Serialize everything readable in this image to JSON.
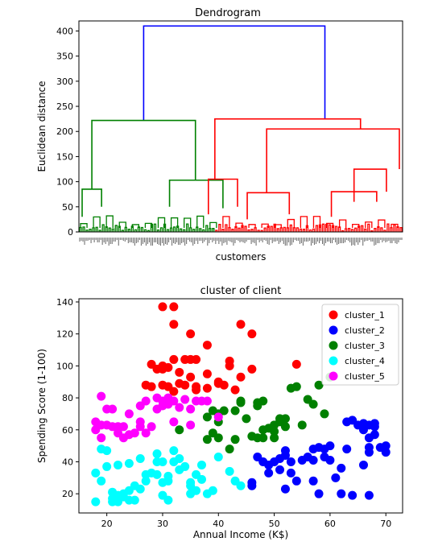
{
  "chart_data": [
    {
      "type": "dendrogram",
      "title": "Dendrogram",
      "xlabel": "customers",
      "ylabel": "Euclidean distance",
      "ylim": [
        0,
        420
      ],
      "yticks": [
        0,
        50,
        100,
        150,
        200,
        250,
        300,
        350,
        400
      ],
      "colors": {
        "root": "#0000ff",
        "left": "#008000",
        "right": "#ff0000"
      },
      "links": [
        {
          "color": "#0000ff",
          "x": [
            0.2,
            0.2,
            0.76,
            0.76
          ],
          "y": [
            222,
            410,
            410,
            225
          ]
        },
        {
          "color": "#008000",
          "x": [
            0.04,
            0.04,
            0.36,
            0.36
          ],
          "y": [
            85,
            222,
            222,
            103
          ]
        },
        {
          "color": "#008000",
          "x": [
            0.01,
            0.01,
            0.07,
            0.07
          ],
          "y": [
            30,
            85,
            85,
            50
          ]
        },
        {
          "color": "#008000",
          "x": [
            0.28,
            0.28,
            0.445,
            0.445
          ],
          "y": [
            50,
            103,
            103,
            47
          ]
        },
        {
          "color": "#ff0000",
          "x": [
            0.42,
            0.42,
            0.87,
            0.87
          ],
          "y": [
            105,
            225,
            225,
            205
          ]
        },
        {
          "color": "#ff0000",
          "x": [
            0.4,
            0.4,
            0.49,
            0.49
          ],
          "y": [
            35,
            105,
            105,
            50
          ]
        },
        {
          "color": "#ff0000",
          "x": [
            0.58,
            0.58,
            0.99,
            0.99
          ],
          "y": [
            78,
            205,
            205,
            125
          ]
        },
        {
          "color": "#ff0000",
          "x": [
            0.52,
            0.52,
            0.65,
            0.65
          ],
          "y": [
            25,
            78,
            78,
            35
          ]
        },
        {
          "color": "#ff0000",
          "x": [
            0.85,
            0.85,
            0.95,
            0.95
          ],
          "y": [
            60,
            125,
            125,
            80
          ]
        },
        {
          "color": "#ff0000",
          "x": [
            0.78,
            0.78,
            0.92,
            0.92
          ],
          "y": [
            30,
            80,
            80,
            60
          ]
        }
      ],
      "leaf_count": 200
    },
    {
      "type": "scatter",
      "title": "cluster of client",
      "xlabel": "Annual Income (K$)",
      "ylabel": "Spending Score (1-100)",
      "xlim": [
        15,
        73
      ],
      "ylim": [
        8,
        142
      ],
      "xticks": [
        20,
        30,
        40,
        50,
        60,
        70
      ],
      "yticks": [
        20,
        40,
        60,
        80,
        100,
        120,
        140
      ],
      "legend_position": "top-right",
      "series": [
        {
          "name": "cluster_1",
          "color": "#ff0000",
          "points": [
            [
              30,
              137
            ],
            [
              32,
              137
            ],
            [
              32,
              126
            ],
            [
              35,
              120
            ],
            [
              44,
              126
            ],
            [
              46,
              120
            ],
            [
              28,
              101
            ],
            [
              29,
              98
            ],
            [
              30,
              100
            ],
            [
              31,
              99
            ],
            [
              32,
              104
            ],
            [
              33,
              96
            ],
            [
              34,
              104
            ],
            [
              35,
              104
            ],
            [
              36,
              104
            ],
            [
              33,
              89
            ],
            [
              34,
              88
            ],
            [
              35,
              93
            ],
            [
              36,
              87
            ],
            [
              38,
              113
            ],
            [
              38,
              95
            ],
            [
              40,
              90
            ],
            [
              42,
              100
            ],
            [
              42,
              103
            ],
            [
              44,
              93
            ],
            [
              46,
              98
            ],
            [
              28,
              87
            ],
            [
              27,
              88
            ],
            [
              30,
              88
            ],
            [
              31,
              87
            ],
            [
              32,
              84
            ],
            [
              36,
              85
            ],
            [
              38,
              86
            ],
            [
              40,
              89
            ],
            [
              41,
              88
            ],
            [
              43,
              85
            ],
            [
              54,
              101
            ],
            [
              30,
              98
            ]
          ]
        },
        {
          "name": "cluster_2",
          "color": "#0000ff",
          "points": [
            [
              46,
              27
            ],
            [
              46,
              25
            ],
            [
              47,
              43
            ],
            [
              48,
              40
            ],
            [
              49,
              38
            ],
            [
              49,
              33
            ],
            [
              50,
              40
            ],
            [
              51,
              42
            ],
            [
              52,
              44
            ],
            [
              53,
              40
            ],
            [
              53,
              33
            ],
            [
              54,
              28
            ],
            [
              55,
              41
            ],
            [
              56,
              43
            ],
            [
              57,
              41
            ],
            [
              57,
              48
            ],
            [
              58,
              49
            ],
            [
              59,
              43
            ],
            [
              59,
              48
            ],
            [
              60,
              41
            ],
            [
              60,
              50
            ],
            [
              61,
              30
            ],
            [
              62,
              20
            ],
            [
              62,
              36
            ],
            [
              63,
              48
            ],
            [
              63,
              65
            ],
            [
              64,
              66
            ],
            [
              65,
              63
            ],
            [
              66,
              64
            ],
            [
              66,
              60
            ],
            [
              67,
              63
            ],
            [
              67,
              55
            ],
            [
              67,
              49
            ],
            [
              67,
              46
            ],
            [
              68,
              57
            ],
            [
              68,
              64
            ],
            [
              68,
              62
            ],
            [
              69,
              49
            ],
            [
              70,
              50
            ],
            [
              70,
              46
            ],
            [
              66,
              38
            ],
            [
              64,
              19
            ],
            [
              67,
              19
            ],
            [
              52,
              23
            ],
            [
              57,
              28
            ],
            [
              58,
              20
            ],
            [
              51,
              35
            ],
            [
              52,
              47
            ]
          ]
        },
        {
          "name": "cluster_3",
          "color": "#008000",
          "points": [
            [
              39,
              72
            ],
            [
              40,
              70
            ],
            [
              41,
              72
            ],
            [
              40,
              65
            ],
            [
              39,
              58
            ],
            [
              38,
              54
            ],
            [
              40,
              55
            ],
            [
              42,
              48
            ],
            [
              43,
              54
            ],
            [
              44,
              77
            ],
            [
              44,
              78
            ],
            [
              45,
              67
            ],
            [
              46,
              56
            ],
            [
              47,
              77
            ],
            [
              47,
              75
            ],
            [
              48,
              78
            ],
            [
              48,
              60
            ],
            [
              48,
              55
            ],
            [
              49,
              61
            ],
            [
              50,
              63
            ],
            [
              50,
              55
            ],
            [
              50,
              59
            ],
            [
              51,
              67
            ],
            [
              51,
              65
            ],
            [
              52,
              67
            ],
            [
              52,
              62
            ],
            [
              53,
              86
            ],
            [
              54,
              87
            ],
            [
              55,
              63
            ],
            [
              56,
              79
            ],
            [
              57,
              76
            ],
            [
              58,
              88
            ],
            [
              59,
              70
            ],
            [
              60,
              93
            ],
            [
              47,
              55
            ],
            [
              38,
              68
            ],
            [
              43,
              72
            ],
            [
              33,
              60
            ]
          ]
        },
        {
          "name": "cluster_4",
          "color": "#00ffff",
          "points": [
            [
              18,
              33
            ],
            [
              19,
              48
            ],
            [
              19,
              28
            ],
            [
              20,
              37
            ],
            [
              20,
              47
            ],
            [
              21,
              21
            ],
            [
              21,
              17
            ],
            [
              22,
              15
            ],
            [
              22,
              19
            ],
            [
              22,
              38
            ],
            [
              23,
              18
            ],
            [
              23,
              20
            ],
            [
              24,
              22
            ],
            [
              24,
              39
            ],
            [
              24,
              16
            ],
            [
              25,
              16
            ],
            [
              25,
              25
            ],
            [
              26,
              23
            ],
            [
              27,
              32
            ],
            [
              27,
              28
            ],
            [
              28,
              33
            ],
            [
              29,
              40
            ],
            [
              29,
              45
            ],
            [
              29,
              32
            ],
            [
              30,
              27
            ],
            [
              30,
              19
            ],
            [
              31,
              16
            ],
            [
              31,
              31
            ],
            [
              31,
              28
            ],
            [
              32,
              47
            ],
            [
              32,
              40
            ],
            [
              33,
              35
            ],
            [
              33,
              42
            ],
            [
              34,
              37
            ],
            [
              35,
              20
            ],
            [
              35,
              25
            ],
            [
              35,
              27
            ],
            [
              36,
              22
            ],
            [
              36,
              32
            ],
            [
              37,
              38
            ],
            [
              37,
              29
            ],
            [
              38,
              20
            ],
            [
              39,
              22
            ],
            [
              40,
              43
            ],
            [
              42,
              34
            ],
            [
              43,
              28
            ],
            [
              44,
              25
            ],
            [
              18,
              15
            ],
            [
              21,
              15
            ],
            [
              26,
              42
            ],
            [
              30,
              40
            ]
          ]
        },
        {
          "name": "cluster_5",
          "color": "#ff00ff",
          "points": [
            [
              18,
              65
            ],
            [
              18,
              60
            ],
            [
              19,
              81
            ],
            [
              19,
              63
            ],
            [
              19,
              55
            ],
            [
              20,
              73
            ],
            [
              21,
              62
            ],
            [
              21,
              73
            ],
            [
              22,
              62
            ],
            [
              22,
              58
            ],
            [
              23,
              55
            ],
            [
              23,
              62
            ],
            [
              24,
              57
            ],
            [
              24,
              70
            ],
            [
              25,
              58
            ],
            [
              26,
              62
            ],
            [
              26,
              75
            ],
            [
              27,
              78
            ],
            [
              27,
              58
            ],
            [
              28,
              62
            ],
            [
              29,
              80
            ],
            [
              29,
              73
            ],
            [
              30,
              75
            ],
            [
              30,
              78
            ],
            [
              31,
              80
            ],
            [
              31,
              76
            ],
            [
              32,
              65
            ],
            [
              32,
              78
            ],
            [
              33,
              74
            ],
            [
              34,
              79
            ],
            [
              35,
              63
            ],
            [
              35,
              73
            ],
            [
              36,
              78
            ],
            [
              37,
              78
            ],
            [
              38,
              78
            ],
            [
              40,
              68
            ],
            [
              20,
              63
            ],
            [
              26,
              65
            ]
          ]
        }
      ]
    }
  ]
}
